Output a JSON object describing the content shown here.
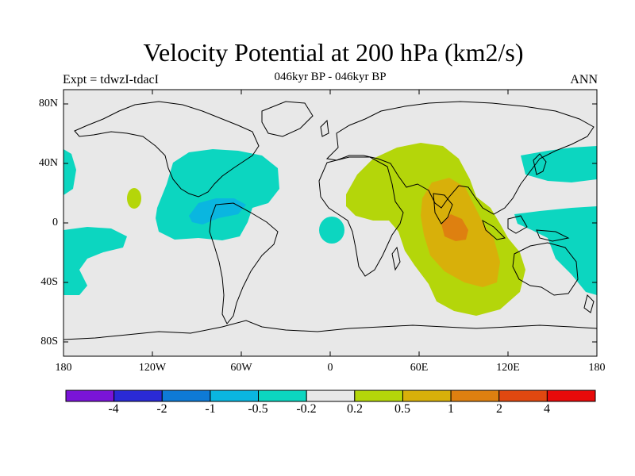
{
  "header": {
    "title": "Velocity Potential at 200 hPa (km2/s)",
    "subtitle": "046kyr BP - 046kyr BP",
    "left_label": "Expt = tdwzI-tdacI",
    "right_label": "ANN"
  },
  "axes": {
    "y_ticks": [
      "80N",
      "40N",
      "0",
      "40S",
      "80S"
    ],
    "x_ticks": [
      "180",
      "120W",
      "60W",
      "0",
      "60E",
      "120E",
      "180"
    ]
  },
  "colorbar": {
    "labels": [
      "-4",
      "-2",
      "-1",
      "-0.5",
      "-0.2",
      "0.2",
      "0.5",
      "1",
      "2",
      "4"
    ],
    "colors": [
      "#7a14d8",
      "#2a2ad6",
      "#0e7ad6",
      "#0ab6e0",
      "#0cd6c0",
      "#e8e8e8",
      "#b4d60a",
      "#d8b00a",
      "#de8010",
      "#e04810",
      "#e80a0a"
    ]
  },
  "palette": {
    "background": "#e8e8e8",
    "cyan": "#0cd6c0",
    "light_blue": "#0ab6e0",
    "yellow_green": "#b4d60a",
    "gold": "#d8b00a",
    "orange": "#de8010"
  }
}
